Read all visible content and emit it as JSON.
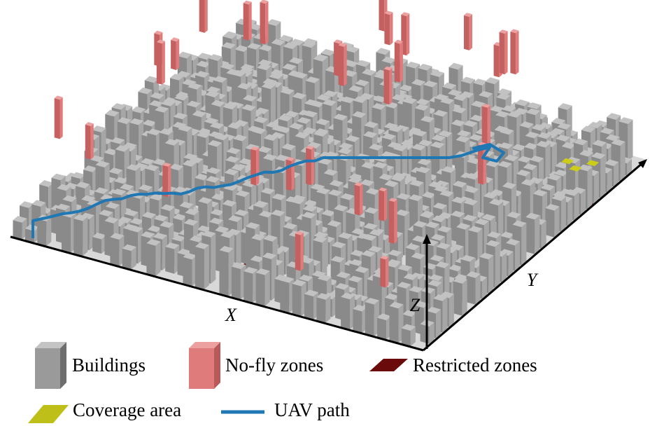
{
  "axes": {
    "x": "X",
    "y": "Y",
    "z": "Z"
  },
  "legend": [
    "Buildings",
    "No-fly zones",
    "Restricted zones",
    "Coverage area",
    "UAV path"
  ]
}
